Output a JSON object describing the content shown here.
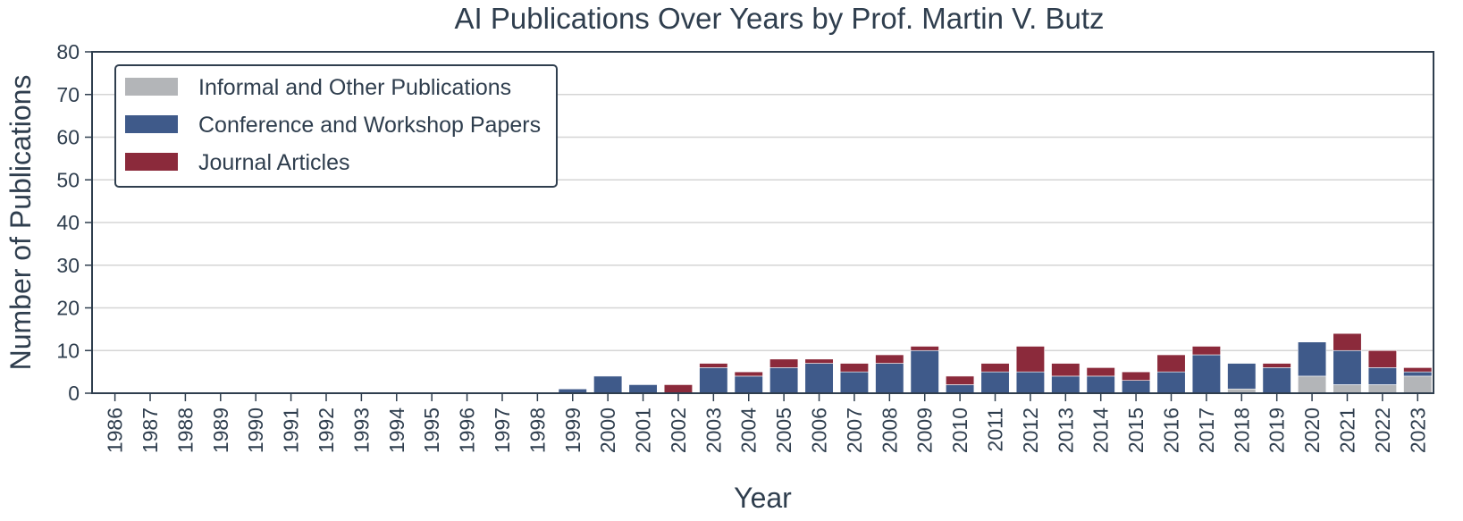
{
  "chart_data": {
    "type": "bar",
    "stacked": true,
    "title": "AI Publications Over Years by Prof. Martin V. Butz",
    "xlabel": "Year",
    "ylabel": "Number of Publications",
    "ylim": [
      0,
      80
    ],
    "yticks": [
      0,
      10,
      20,
      30,
      40,
      50,
      60,
      70,
      80
    ],
    "grid": "horizontal",
    "legend_position": "top-left",
    "categories": [
      "1986",
      "1987",
      "1988",
      "1989",
      "1990",
      "1991",
      "1992",
      "1993",
      "1994",
      "1995",
      "1996",
      "1997",
      "1998",
      "1999",
      "2000",
      "2001",
      "2002",
      "2003",
      "2004",
      "2005",
      "2006",
      "2007",
      "2008",
      "2009",
      "2010",
      "2011",
      "2012",
      "2013",
      "2014",
      "2015",
      "2016",
      "2017",
      "2018",
      "2019",
      "2020",
      "2021",
      "2022",
      "2023"
    ],
    "series": [
      {
        "name": "Informal and Other Publications",
        "color": "#b3b5b8",
        "values": [
          0,
          0,
          0,
          0,
          0,
          0,
          0,
          0,
          0,
          0,
          0,
          0,
          0,
          0,
          0,
          0,
          0,
          0,
          0,
          0,
          0,
          0,
          0,
          0,
          0,
          0,
          0,
          0,
          0,
          0,
          0,
          0,
          1,
          0,
          4,
          2,
          2,
          4
        ]
      },
      {
        "name": "Conference and Workshop Papers",
        "color": "#3f5a8a",
        "values": [
          0,
          0,
          0,
          0,
          0,
          0,
          0,
          0,
          0,
          0,
          0,
          0,
          0,
          1,
          4,
          2,
          0,
          6,
          4,
          6,
          7,
          5,
          7,
          10,
          2,
          5,
          5,
          4,
          4,
          3,
          5,
          9,
          6,
          6,
          8,
          8,
          4,
          1
        ]
      },
      {
        "name": "Journal Articles",
        "color": "#8b2a3b",
        "values": [
          0,
          0,
          0,
          0,
          0,
          0,
          0,
          0,
          0,
          0,
          0,
          0,
          0,
          0,
          0,
          0,
          2,
          1,
          1,
          2,
          1,
          2,
          2,
          1,
          2,
          2,
          6,
          3,
          2,
          2,
          4,
          2,
          0,
          1,
          0,
          4,
          4,
          1
        ]
      }
    ]
  }
}
